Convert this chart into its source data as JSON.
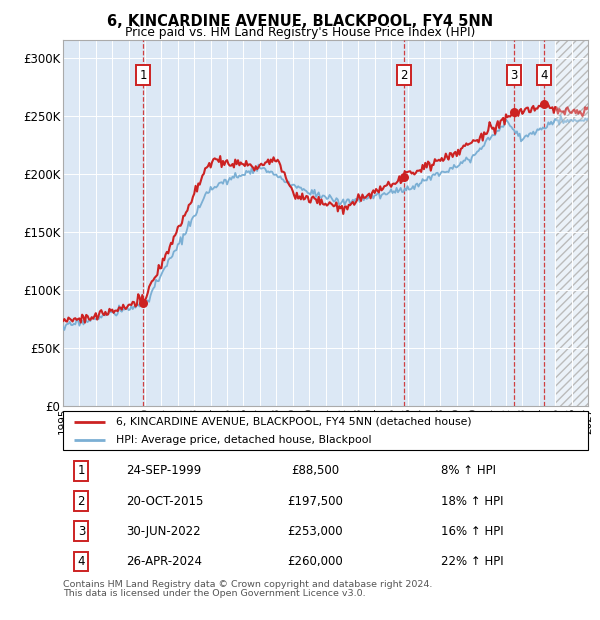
{
  "title": "6, KINCARDINE AVENUE, BLACKPOOL, FY4 5NN",
  "subtitle": "Price paid vs. HM Land Registry's House Price Index (HPI)",
  "ylim": [
    0,
    315000
  ],
  "yticks": [
    0,
    50000,
    100000,
    150000,
    200000,
    250000,
    300000
  ],
  "ytick_labels": [
    "£0",
    "£50K",
    "£100K",
    "£150K",
    "£200K",
    "£250K",
    "£300K"
  ],
  "x_start_year": 1995,
  "x_end_year": 2027,
  "present_cutoff": 2025.0,
  "hpi_color": "#7bafd4",
  "price_color": "#cc2222",
  "bg_color": "#dce8f5",
  "grid_color": "#ffffff",
  "vline_color": "#cc2222",
  "sale_points": [
    {
      "year": 1999.9,
      "price": 88500,
      "label": "1"
    },
    {
      "year": 2015.8,
      "price": 197500,
      "label": "2"
    },
    {
      "year": 2022.5,
      "price": 253000,
      "label": "3"
    },
    {
      "year": 2024.33,
      "price": 260000,
      "label": "4"
    }
  ],
  "legend_label_price": "6, KINCARDINE AVENUE, BLACKPOOL, FY4 5NN (detached house)",
  "legend_label_hpi": "HPI: Average price, detached house, Blackpool",
  "table_rows": [
    {
      "num": "1",
      "date": "24-SEP-1999",
      "price": "£88,500",
      "hpi": "8% ↑ HPI"
    },
    {
      "num": "2",
      "date": "20-OCT-2015",
      "price": "£197,500",
      "hpi": "18% ↑ HPI"
    },
    {
      "num": "3",
      "date": "30-JUN-2022",
      "price": "£253,000",
      "hpi": "16% ↑ HPI"
    },
    {
      "num": "4",
      "date": "26-APR-2024",
      "price": "£260,000",
      "hpi": "22% ↑ HPI"
    }
  ],
  "footnote1": "Contains HM Land Registry data © Crown copyright and database right 2024.",
  "footnote2": "This data is licensed under the Open Government Licence v3.0."
}
